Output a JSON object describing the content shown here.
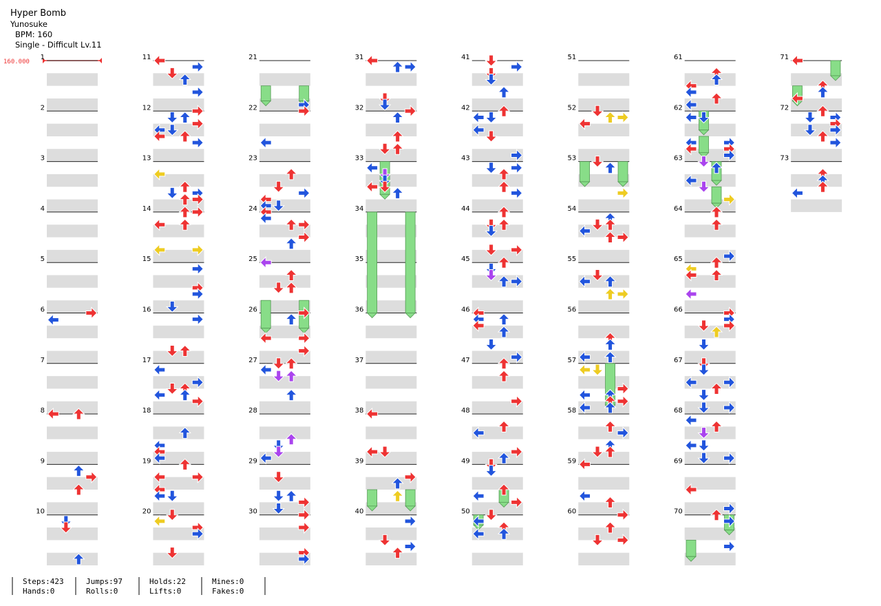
{
  "header": {
    "title": "Hyper Bomb",
    "artist": "Yunosuke",
    "bpm": "BPM: 160",
    "difficulty": "Single - Difficult Lv.11",
    "bpm_marker": "160.000"
  },
  "measures": [
    1,
    2,
    3,
    4,
    5,
    6,
    7,
    8,
    9,
    10,
    11,
    12,
    13,
    14,
    15,
    16,
    17,
    18,
    19,
    20,
    21,
    22,
    23,
    24,
    25,
    26,
    27,
    28,
    29,
    30,
    31,
    32,
    33,
    34,
    35,
    36,
    37,
    38,
    39,
    40,
    41,
    42,
    43,
    44,
    45,
    46,
    47,
    48,
    49,
    50,
    51,
    52,
    53,
    54,
    55,
    56,
    57,
    58,
    59,
    60,
    61,
    62,
    63,
    64,
    65,
    66,
    67,
    68,
    69,
    70,
    71,
    72,
    73
  ],
  "stats": [
    [
      "Steps:423",
      "Hands:0"
    ],
    [
      "Jumps:97",
      "Rolls:0"
    ],
    [
      "Holds:22",
      "Lifts:0"
    ],
    [
      "Mines:0",
      "Fakes:0"
    ]
  ]
}
